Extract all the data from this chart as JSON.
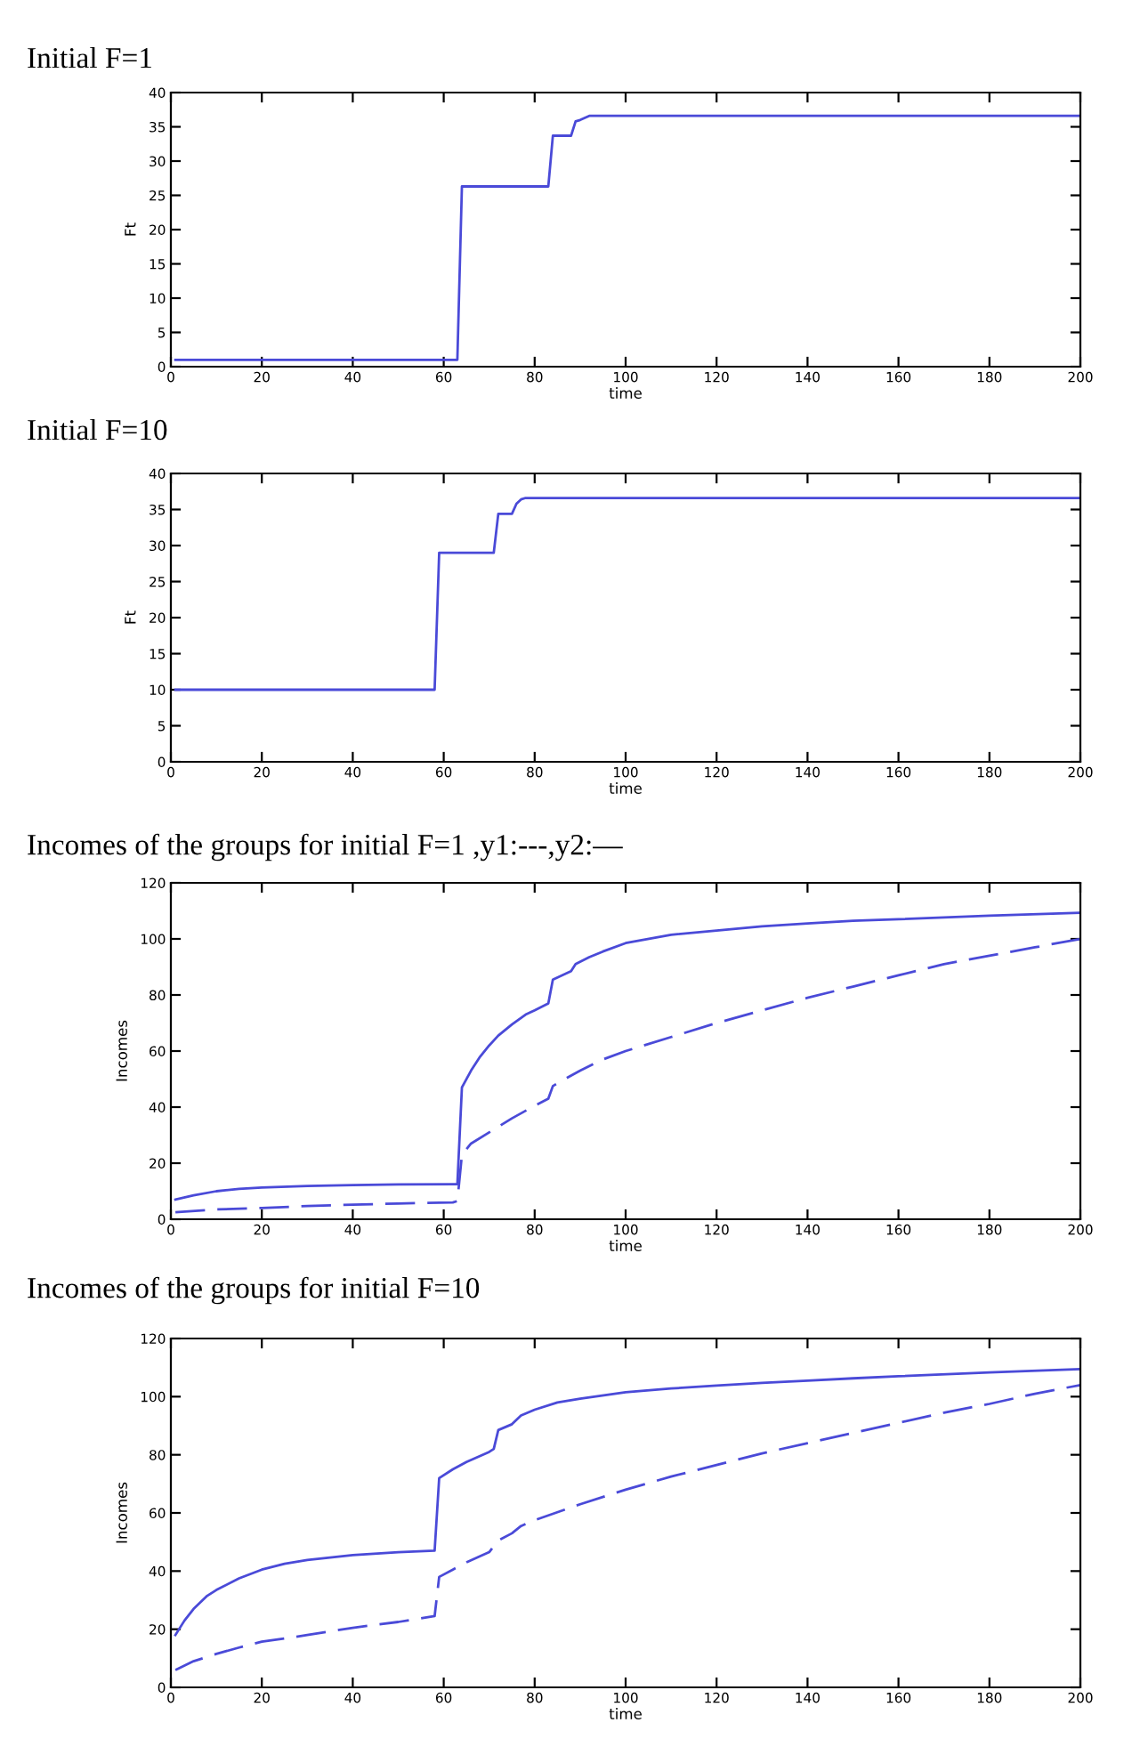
{
  "chart_data": [
    {
      "type": "line",
      "title": "Initial F=1",
      "xlabel": "time",
      "ylabel": "Ft",
      "xlim": [
        0,
        200
      ],
      "ylim": [
        0,
        40
      ],
      "xticks": [
        0,
        20,
        40,
        60,
        80,
        100,
        120,
        140,
        160,
        180,
        200
      ],
      "yticks": [
        0,
        5,
        10,
        15,
        20,
        25,
        30,
        35,
        40
      ],
      "series": [
        {
          "color": "#4a4ad8",
          "line_style": "solid",
          "x": [
            1,
            63,
            64,
            83,
            84,
            88,
            89,
            90,
            92,
            200
          ],
          "values": [
            1,
            1,
            26.3,
            26.3,
            33.7,
            33.7,
            35.8,
            36.0,
            36.6,
            36.6
          ]
        }
      ]
    },
    {
      "type": "line",
      "title": "Initial F=10",
      "xlabel": "time",
      "ylabel": "Ft",
      "xlim": [
        0,
        200
      ],
      "ylim": [
        0,
        40
      ],
      "xticks": [
        0,
        20,
        40,
        60,
        80,
        100,
        120,
        140,
        160,
        180,
        200
      ],
      "yticks": [
        0,
        5,
        10,
        15,
        20,
        25,
        30,
        35,
        40
      ],
      "series": [
        {
          "color": "#4a4ad8",
          "line_style": "solid",
          "x": [
            1,
            58,
            59,
            71,
            72,
            75,
            76,
            77,
            78,
            200
          ],
          "values": [
            10,
            10,
            29,
            29,
            34.4,
            34.4,
            35.8,
            36.4,
            36.6,
            36.6
          ]
        }
      ]
    },
    {
      "type": "line",
      "title": "Incomes of the groups for initial F=1 ,y1:---,y2:—",
      "xlabel": "time",
      "ylabel": "Incomes",
      "xlim": [
        0,
        200
      ],
      "ylim": [
        0,
        120
      ],
      "xticks": [
        0,
        20,
        40,
        60,
        80,
        100,
        120,
        140,
        160,
        180,
        200
      ],
      "yticks": [
        0,
        20,
        40,
        60,
        80,
        100,
        120
      ],
      "series": [
        {
          "color": "#4a4ad8",
          "line_style": "solid",
          "x": [
            1,
            5,
            10,
            15,
            20,
            30,
            40,
            50,
            63,
            64,
            66,
            68,
            70,
            72,
            75,
            78,
            80,
            83,
            84,
            88,
            89,
            92,
            95,
            100,
            110,
            120,
            130,
            140,
            150,
            160,
            180,
            200
          ],
          "values": [
            7,
            8.5,
            10,
            10.8,
            11.3,
            11.9,
            12.2,
            12.4,
            12.5,
            47,
            53,
            58,
            62,
            65.5,
            69.5,
            73,
            74.5,
            77,
            85.5,
            88.5,
            91,
            93.5,
            95.5,
            98.5,
            101.5,
            103,
            104.5,
            105.5,
            106.5,
            107,
            108.3,
            109.3
          ]
        },
        {
          "color": "#4a4ad8",
          "line_style": "dashed",
          "x": [
            1,
            10,
            20,
            30,
            40,
            50,
            62,
            63,
            64,
            66,
            70,
            75,
            80,
            83,
            84,
            86,
            90,
            95,
            100,
            110,
            120,
            130,
            140,
            150,
            160,
            170,
            180,
            190,
            200
          ],
          "values": [
            2.5,
            3.5,
            4,
            4.7,
            5.2,
            5.6,
            6,
            6.5,
            23,
            27,
            31,
            36,
            40.5,
            43,
            47.5,
            49.5,
            53,
            57,
            60,
            65,
            70,
            74.5,
            79,
            83,
            87,
            91,
            94,
            97,
            100
          ]
        }
      ]
    },
    {
      "type": "line",
      "title": "Incomes of the groups for initial F=10",
      "xlabel": "time",
      "ylabel": "Incomes",
      "xlim": [
        0,
        200
      ],
      "ylim": [
        0,
        120
      ],
      "xticks": [
        0,
        20,
        40,
        60,
        80,
        100,
        120,
        140,
        160,
        180,
        200
      ],
      "yticks": [
        0,
        20,
        40,
        60,
        80,
        100,
        120
      ],
      "series": [
        {
          "color": "#4a4ad8",
          "line_style": "solid",
          "x": [
            1,
            3,
            5,
            8,
            10,
            15,
            20,
            25,
            30,
            40,
            50,
            58,
            59,
            62,
            65,
            70,
            71,
            72,
            75,
            77,
            80,
            85,
            90,
            100,
            110,
            120,
            130,
            140,
            150,
            160,
            180,
            200
          ],
          "values": [
            18,
            23,
            27,
            31.5,
            33.5,
            37.5,
            40.5,
            42.5,
            43.8,
            45.5,
            46.5,
            47,
            72,
            75,
            77.5,
            81,
            82,
            88.5,
            90.5,
            93.5,
            95.5,
            98,
            99.3,
            101.5,
            102.8,
            103.8,
            104.7,
            105.5,
            106.3,
            107,
            108.3,
            109.5
          ]
        },
        {
          "color": "#4a4ad8",
          "line_style": "dashed",
          "x": [
            1,
            5,
            10,
            15,
            20,
            30,
            40,
            50,
            58,
            59,
            62,
            65,
            70,
            72,
            75,
            77,
            80,
            90,
            100,
            110,
            120,
            130,
            140,
            150,
            160,
            170,
            180,
            190,
            200
          ],
          "values": [
            6,
            9,
            11.5,
            13.7,
            15.7,
            18,
            20.5,
            22.5,
            24.5,
            38,
            40.5,
            43,
            46.5,
            50.5,
            53,
            55.5,
            57.5,
            63,
            68,
            72.5,
            76.5,
            80.5,
            84,
            87.5,
            91,
            94.5,
            97.5,
            101,
            104
          ]
        }
      ]
    }
  ]
}
